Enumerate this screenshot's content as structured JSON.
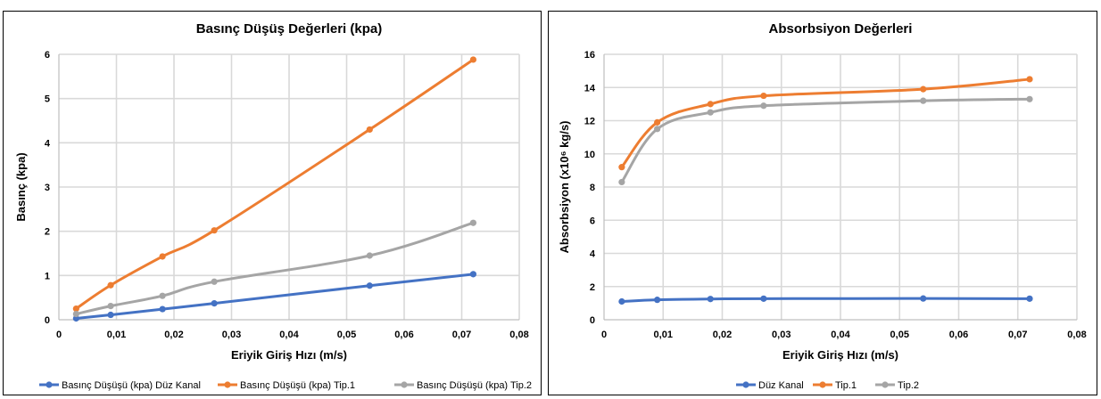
{
  "chart_data": [
    {
      "type": "line",
      "title": "Basınç Düşüş Değerleri (kpa)",
      "xlabel": "Eriyik Giriş Hızı (m/s)",
      "ylabel": "Basınç (kpa)",
      "xlim": [
        0,
        0.08
      ],
      "ylim": [
        0,
        6
      ],
      "x_ticks": [
        "0",
        "0,01",
        "0,02",
        "0,03",
        "0,04",
        "0,05",
        "0,06",
        "0,07",
        "0,08"
      ],
      "y_ticks": [
        "0",
        "1",
        "2",
        "3",
        "4",
        "5",
        "6"
      ],
      "x": [
        0.003,
        0.009,
        0.018,
        0.027,
        0.054,
        0.072
      ],
      "series": [
        {
          "name": "Basınç Düşüşü (kpa) Düz Kanal",
          "color": "#4472c4",
          "values": [
            0.03,
            0.11,
            0.24,
            0.37,
            0.77,
            1.03
          ]
        },
        {
          "name": "Basınç Düşüşü (kpa) Tip.1",
          "color": "#ed7d31",
          "values": [
            0.25,
            0.78,
            1.43,
            2.02,
            4.3,
            5.88
          ]
        },
        {
          "name": "Basınç Düşüşü (kpa) Tip.2",
          "color": "#a5a5a5",
          "values": [
            0.13,
            0.31,
            0.54,
            0.86,
            1.45,
            2.19
          ]
        }
      ],
      "grid": true,
      "legend": "bottom"
    },
    {
      "type": "line",
      "title": "Absorbsiyon Değerleri",
      "xlabel": "Eriyik Giriş Hızı (m/s)",
      "ylabel": "Absorbsiyon (x10⁶ kg/s)",
      "xlim": [
        0,
        0.08
      ],
      "ylim": [
        0,
        16
      ],
      "x_ticks": [
        "0",
        "0,01",
        "0,02",
        "0,03",
        "0,04",
        "0,05",
        "0,06",
        "0,07",
        "0,08"
      ],
      "y_ticks": [
        "0",
        "2",
        "4",
        "6",
        "8",
        "10",
        "12",
        "14",
        "16"
      ],
      "x": [
        0.003,
        0.009,
        0.018,
        0.027,
        0.054,
        0.072
      ],
      "series": [
        {
          "name": "Düz Kanal",
          "color": "#4472c4",
          "values": [
            1.1,
            1.2,
            1.25,
            1.27,
            1.28,
            1.27
          ]
        },
        {
          "name": "Tip.1",
          "color": "#ed7d31",
          "values": [
            9.2,
            11.9,
            13.0,
            13.5,
            13.9,
            14.5
          ]
        },
        {
          "name": "Tip.2",
          "color": "#a5a5a5",
          "values": [
            8.3,
            11.5,
            12.5,
            12.9,
            13.2,
            13.3
          ]
        }
      ],
      "grid": true,
      "legend": "bottom"
    }
  ]
}
